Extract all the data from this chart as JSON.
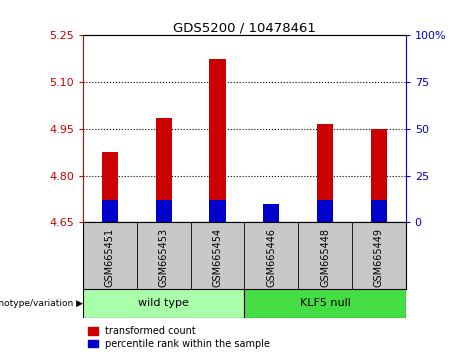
{
  "title": "GDS5200 / 10478461",
  "samples": [
    "GSM665451",
    "GSM665453",
    "GSM665454",
    "GSM665446",
    "GSM665448",
    "GSM665449"
  ],
  "red_values": [
    4.875,
    4.985,
    5.175,
    4.655,
    4.965,
    4.95
  ],
  "blue_percentile": [
    12,
    12,
    12,
    10,
    12,
    12
  ],
  "ylim_left": [
    4.65,
    5.25
  ],
  "ylim_right": [
    0,
    100
  ],
  "yticks_left": [
    4.65,
    4.8,
    4.95,
    5.1,
    5.25
  ],
  "yticks_right": [
    0,
    25,
    50,
    75,
    100
  ],
  "group1_label": "wild type",
  "group2_label": "KLF5 null",
  "group1_indices": [
    0,
    1,
    2
  ],
  "group2_indices": [
    3,
    4,
    5
  ],
  "group1_color": "#aaffaa",
  "group2_color": "#44dd44",
  "bar_color_red": "#CC0000",
  "bar_color_blue": "#0000CC",
  "legend1": "transformed count",
  "legend2": "percentile rank within the sample",
  "base_value": 4.65,
  "grid_dotted_at": [
    4.8,
    4.95,
    5.1
  ],
  "bg_color": "#FFFFFF",
  "plot_bg": "#FFFFFF",
  "tick_area_bg": "#C8C8C8"
}
